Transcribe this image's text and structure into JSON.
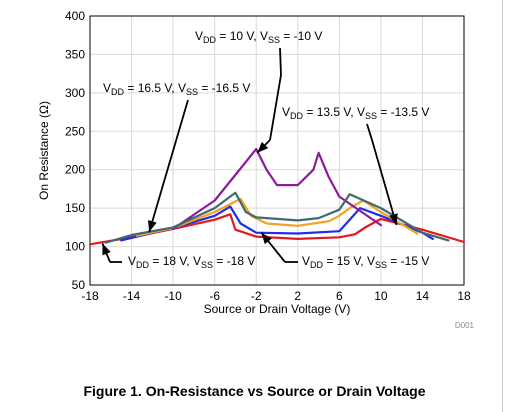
{
  "chart_data": {
    "type": "line",
    "xlabel": "Source or Drain Voltage (V)",
    "ylabel": "On Resistance (Ω)",
    "xlim": [
      -18,
      18
    ],
    "ylim": [
      50,
      400
    ],
    "xticks": [
      "-18",
      "-14",
      "-10",
      "-6",
      "-2",
      "2",
      "6",
      "10",
      "14",
      "18"
    ],
    "yticks": [
      "50",
      "100",
      "150",
      "200",
      "250",
      "300",
      "350",
      "400"
    ],
    "grid": true,
    "watermark": "D001",
    "series": [
      {
        "name": "VDD = 18 V, VSS = -18 V",
        "color": "#e31a1c",
        "x": [
          -18,
          -14,
          -10,
          -6,
          -4.5,
          -4,
          -2,
          2,
          6,
          7.5,
          8.5,
          10,
          14,
          18
        ],
        "y": [
          103,
          112,
          123,
          135,
          142,
          122,
          113,
          110,
          112,
          116,
          125,
          136,
          122,
          106
        ]
      },
      {
        "name": "VDD = 15 V, VSS = -15 V",
        "color": "#1f2ee6",
        "x": [
          -15,
          -10,
          -6,
          -4.5,
          -3.5,
          -2,
          2,
          6,
          7,
          8,
          10,
          14,
          15
        ],
        "y": [
          108,
          124,
          140,
          152,
          130,
          118,
          117,
          120,
          135,
          150,
          140,
          118,
          110
        ]
      },
      {
        "name": "VDD = 13.5 V, VSS = -13.5 V",
        "color": "#f5a020",
        "x": [
          -13.5,
          -10,
          -6,
          -3.5,
          -2.5,
          -1,
          2,
          5,
          6,
          7,
          8.3,
          10,
          13.5
        ],
        "y": [
          114,
          124,
          145,
          162,
          140,
          130,
          127,
          133,
          140,
          150,
          160,
          145,
          117
        ]
      },
      {
        "name": "VDD = 10 V, VSS = -10 V",
        "color": "#8e1a9c",
        "x": [
          -10,
          -6,
          -3,
          -2,
          -1,
          0,
          2,
          3.5,
          4,
          5,
          6,
          10
        ],
        "y": [
          123,
          160,
          210,
          227,
          200,
          180,
          180,
          200,
          222,
          190,
          165,
          128
        ]
      },
      {
        "name": "VDD = 16.5 V, VSS = -16.5 V",
        "color": "#3d6b70",
        "x": [
          -16.5,
          -14,
          -10,
          -6,
          -4,
          -3,
          -2,
          2,
          4,
          6,
          7,
          10,
          14,
          16.5
        ],
        "y": [
          105,
          115,
          125,
          150,
          170,
          145,
          138,
          134,
          137,
          148,
          168,
          150,
          118,
          108
        ]
      }
    ],
    "annotations": [
      {
        "label": "VDD = 10 V, VSS = -10 V",
        "text_main": "V",
        "sub1": "DD",
        "mid": " = 10 V, V",
        "sub2": "SS",
        "end": " = -10 V"
      },
      {
        "label": "VDD = 16.5 V, VSS = -16.5 V",
        "text_main": "V",
        "sub1": "DD",
        "mid": " = 16.5 V, V",
        "sub2": "SS",
        "end": " = -16.5 V"
      },
      {
        "label": "VDD = 13.5 V, VSS = -13.5 V",
        "text_main": "V",
        "sub1": "DD",
        "mid": " = 13.5 V, V",
        "sub2": "SS",
        "end": " = -13.5 V"
      },
      {
        "label": "VDD = 18 V, VSS = -18 V",
        "text_main": "V",
        "sub1": "DD",
        "mid": " = 18 V, V",
        "sub2": "SS",
        "end": " = -18 V"
      },
      {
        "label": "VDD = 15 V, VSS = -15 V",
        "text_main": "V",
        "sub1": "DD",
        "mid": " = 15 V, V",
        "sub2": "SS",
        "end": " = -15 V"
      }
    ]
  },
  "caption": "Figure 1. On-Resistance vs Source or Drain Voltage"
}
